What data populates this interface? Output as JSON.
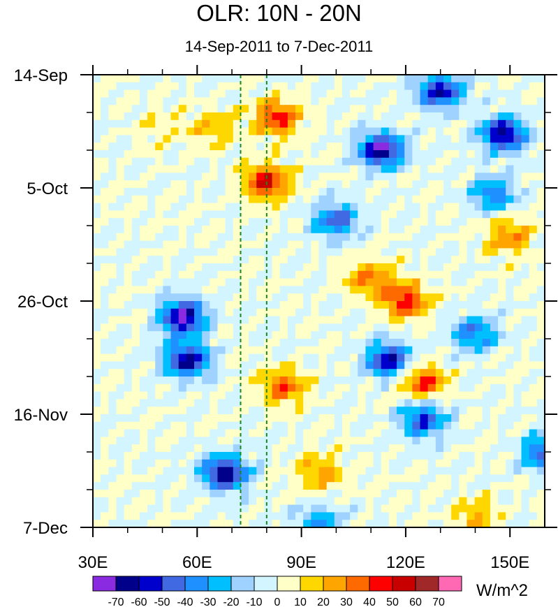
{
  "chart_data": {
    "type": "heatmap",
    "title": "OLR: 10N - 20N",
    "subtitle": "14-Sep-2011 to 7-Dec-2011",
    "x_axis": {
      "range": [
        30,
        160
      ],
      "ticks": [
        {
          "value": 30,
          "label": "30E"
        },
        {
          "value": 60,
          "label": "60E"
        },
        {
          "value": 90,
          "label": "90E"
        },
        {
          "value": 120,
          "label": "120E"
        },
        {
          "value": 150,
          "label": "150E"
        }
      ]
    },
    "y_axis": {
      "range_days": [
        0,
        84
      ],
      "ticks": [
        {
          "day": 0,
          "label": "14-Sep"
        },
        {
          "day": 21,
          "label": "5-Oct"
        },
        {
          "day": 42,
          "label": "26-Oct"
        },
        {
          "day": 63,
          "label": "16-Nov"
        },
        {
          "day": 84,
          "label": "7-Dec"
        }
      ]
    },
    "reference_lines_lon": [
      72.5,
      80
    ],
    "colorbar": {
      "units": "W/m^2",
      "levels": [
        -70,
        -60,
        -50,
        -40,
        -30,
        -20,
        -10,
        0,
        10,
        20,
        30,
        40,
        50,
        60,
        70
      ],
      "colors": [
        "#8a2be2",
        "#00008b",
        "#0000cd",
        "#4169e1",
        "#1e90ff",
        "#00bfff",
        "#a0d2ff",
        "#d2f5ff",
        "#ffffc8",
        "#ffd700",
        "#ffa500",
        "#ff6a00",
        "#ff0000",
        "#c80000",
        "#a02828",
        "#ff69b4"
      ]
    },
    "anomaly_features": [
      {
        "lon": 80,
        "day": 20,
        "value": 50
      },
      {
        "lon": 83,
        "day": 8,
        "value": 45
      },
      {
        "lon": 56,
        "day": 45,
        "value": -70
      },
      {
        "lon": 57,
        "day": 53,
        "value": -65
      },
      {
        "lon": 68,
        "day": 74,
        "value": -70
      },
      {
        "lon": 113,
        "day": 14,
        "value": -70
      },
      {
        "lon": 148,
        "day": 11,
        "value": -65
      },
      {
        "lon": 130,
        "day": 3,
        "value": -60
      },
      {
        "lon": 120,
        "day": 42,
        "value": 45
      },
      {
        "lon": 110,
        "day": 38,
        "value": 35
      },
      {
        "lon": 115,
        "day": 53,
        "value": -60
      },
      {
        "lon": 125,
        "day": 57,
        "value": 40
      },
      {
        "lon": 85,
        "day": 58,
        "value": 35
      },
      {
        "lon": 125,
        "day": 64,
        "value": -50
      },
      {
        "lon": 140,
        "day": 48,
        "value": -40
      },
      {
        "lon": 150,
        "day": 30,
        "value": 30
      },
      {
        "lon": 100,
        "day": 27,
        "value": -45
      },
      {
        "lon": 145,
        "day": 22,
        "value": -40
      },
      {
        "lon": 160,
        "day": 70,
        "value": -50
      },
      {
        "lon": 95,
        "day": 83,
        "value": -30
      },
      {
        "lon": 95,
        "day": 74,
        "value": 25
      },
      {
        "lon": 65,
        "day": 10,
        "value": 20
      },
      {
        "lon": 50,
        "day": 10,
        "value": 10
      },
      {
        "lon": 140,
        "day": 82,
        "value": 20
      }
    ]
  }
}
